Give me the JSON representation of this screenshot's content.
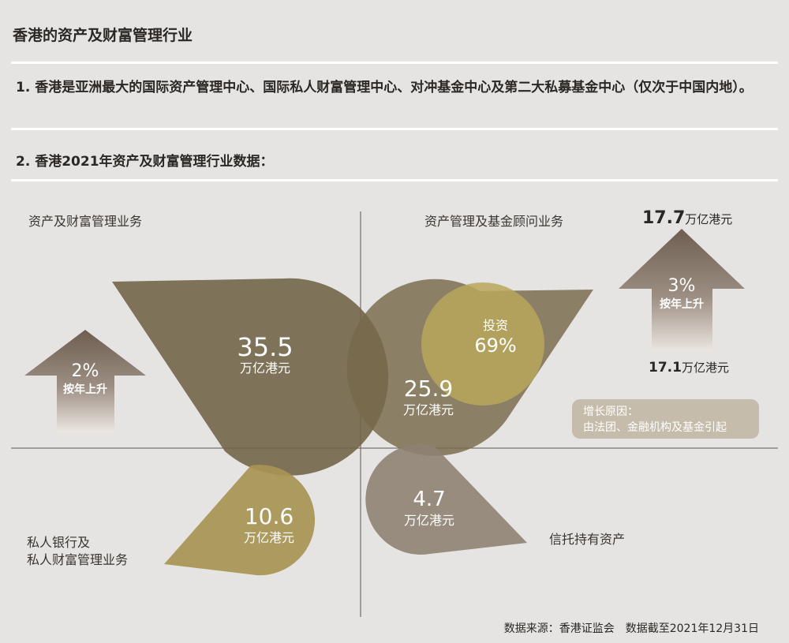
{
  "title": "香港的资产及财富管理行业",
  "point1": "1. 香港是亚洲最大的国际资产管理中心、国际私人财富管理中心、对冲基金中心及第二大私募基金中心（仅次于中国内地）。",
  "point2": "2. 香港2021年资产及财富管理行业数据：",
  "quadrants": {
    "top_left": {
      "label": "资产及财富管理业务",
      "value": "35.5",
      "unit": "万亿港元"
    },
    "top_right": {
      "label": "资产管理及基金顾问业务",
      "value": "25.9",
      "unit": "万亿港元",
      "sub_label": "投资",
      "sub_value": "69%"
    },
    "bottom_left": {
      "label_line1": "私人银行及",
      "label_line2": "私人财富管理业务",
      "value": "10.6",
      "unit": "万亿港元"
    },
    "bottom_right": {
      "label": "信托持有资产",
      "value": "4.7",
      "unit": "万亿港元"
    }
  },
  "left_arrow": {
    "pct": "2%",
    "text": "按年上升"
  },
  "right_arrow": {
    "pct": "3%",
    "text": "按年上升",
    "top_value": "17.7",
    "top_unit": "万亿港元",
    "bottom_value": "17.1",
    "bottom_unit": "万亿港元"
  },
  "reason": {
    "line1": "增长原因：",
    "line2": "由法团、金融机构及基金引起"
  },
  "source": "数据来源：香港证监会　数据截至2021年12月31日",
  "colors": {
    "background": "#e6e4e2",
    "dark_olive": "#6f6346",
    "olive_gold": "#a89452",
    "warm_gray": "#8e8273",
    "light_gold": "#b7a75a",
    "arrow_brown": "#6e5e52"
  }
}
